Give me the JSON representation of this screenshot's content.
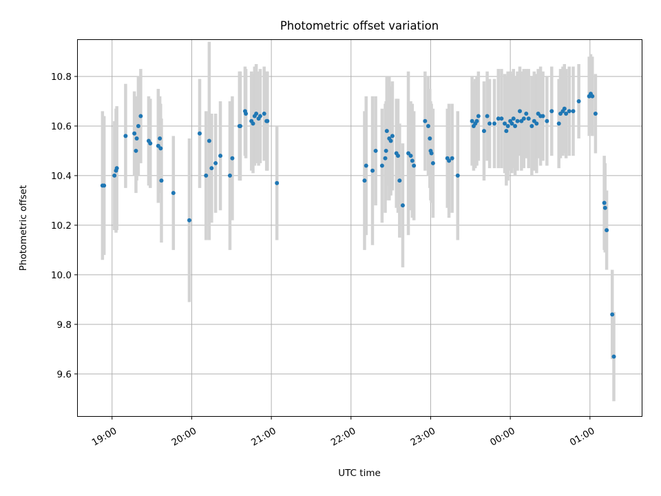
{
  "chart_data": {
    "type": "scatter",
    "title": "Photometric offset variation",
    "xlabel": "UTC time",
    "ylabel": "Photometric offset",
    "x_unit": "hours (UTC, continuous; values >= 24 fall on the next day)",
    "xlim": [
      18.57,
      25.65
    ],
    "ylim": [
      9.43,
      10.95
    ],
    "x_ticks": [
      {
        "value": 19,
        "label": "19:00"
      },
      {
        "value": 20,
        "label": "20:00"
      },
      {
        "value": 21,
        "label": "21:00"
      },
      {
        "value": 22,
        "label": "22:00"
      },
      {
        "value": 23,
        "label": "23:00"
      },
      {
        "value": 24,
        "label": "00:00"
      },
      {
        "value": 25,
        "label": "01:00"
      }
    ],
    "y_ticks": [
      {
        "value": 9.6,
        "label": "9.6"
      },
      {
        "value": 9.8,
        "label": "9.8"
      },
      {
        "value": 10.0,
        "label": "10.0"
      },
      {
        "value": 10.2,
        "label": "10.2"
      },
      {
        "value": 10.4,
        "label": "10.4"
      },
      {
        "value": 10.6,
        "label": "10.6"
      },
      {
        "value": 10.8,
        "label": "10.8"
      }
    ],
    "grid": true,
    "colors": {
      "points": "#1f77b4",
      "errorbars": "#d3d3d3",
      "grid": "#b0b0b0"
    },
    "series": [
      {
        "points": [
          [
            18.88,
            10.36,
            0.3
          ],
          [
            18.9,
            10.36,
            0.28
          ],
          [
            19.03,
            10.4,
            0.22
          ],
          [
            19.05,
            10.42,
            0.25
          ],
          [
            19.06,
            10.43,
            0.25
          ],
          [
            19.17,
            10.56,
            0.21
          ],
          [
            19.28,
            10.57,
            0.17
          ],
          [
            19.3,
            10.5,
            0.17
          ],
          [
            19.31,
            10.55,
            0.17
          ],
          [
            19.33,
            10.6,
            0.2
          ],
          [
            19.36,
            10.64,
            0.19
          ],
          [
            19.46,
            10.54,
            0.18
          ],
          [
            19.48,
            10.53,
            0.18
          ],
          [
            19.58,
            10.52,
            0.23
          ],
          [
            19.6,
            10.55,
            0.17
          ],
          [
            19.61,
            10.51,
            0.18
          ],
          [
            19.62,
            10.38,
            0.25
          ],
          [
            19.77,
            10.33,
            0.23
          ],
          [
            19.97,
            10.22,
            0.33
          ],
          [
            20.1,
            10.57,
            0.22
          ],
          [
            20.18,
            10.4,
            0.26
          ],
          [
            20.22,
            10.54,
            0.4
          ],
          [
            20.25,
            10.43,
            0.22
          ],
          [
            20.3,
            10.45,
            0.2
          ],
          [
            20.36,
            10.48,
            0.22
          ],
          [
            20.48,
            10.4,
            0.3
          ],
          [
            20.51,
            10.47,
            0.25
          ],
          [
            20.6,
            10.6,
            0.22
          ],
          [
            20.61,
            10.6,
            0.22
          ],
          [
            20.67,
            10.66,
            0.18
          ],
          [
            20.68,
            10.65,
            0.18
          ],
          [
            20.75,
            10.62,
            0.2
          ],
          [
            20.77,
            10.61,
            0.2
          ],
          [
            20.79,
            10.64,
            0.2
          ],
          [
            20.81,
            10.65,
            0.2
          ],
          [
            20.84,
            10.63,
            0.19
          ],
          [
            20.86,
            10.64,
            0.19
          ],
          [
            20.91,
            10.65,
            0.19
          ],
          [
            20.94,
            10.62,
            0.2
          ],
          [
            20.95,
            10.62,
            0.2
          ],
          [
            21.07,
            10.37,
            0.23
          ],
          [
            22.17,
            10.38,
            0.28
          ],
          [
            22.19,
            10.44,
            0.28
          ],
          [
            22.27,
            10.42,
            0.3
          ],
          [
            22.31,
            10.5,
            0.22
          ],
          [
            22.39,
            10.44,
            0.23
          ],
          [
            22.43,
            10.47,
            0.22
          ],
          [
            22.44,
            10.5,
            0.2
          ],
          [
            22.45,
            10.58,
            0.22
          ],
          [
            22.48,
            10.55,
            0.25
          ],
          [
            22.5,
            10.54,
            0.22
          ],
          [
            22.52,
            10.56,
            0.22
          ],
          [
            22.57,
            10.49,
            0.22
          ],
          [
            22.59,
            10.48,
            0.23
          ],
          [
            22.61,
            10.38,
            0.23
          ],
          [
            22.65,
            10.28,
            0.25
          ],
          [
            22.72,
            10.49,
            0.33
          ],
          [
            22.75,
            10.48,
            0.22
          ],
          [
            22.77,
            10.46,
            0.23
          ],
          [
            22.79,
            10.44,
            0.22
          ],
          [
            22.93,
            10.62,
            0.2
          ],
          [
            22.97,
            10.6,
            0.2
          ],
          [
            22.99,
            10.55,
            0.2
          ],
          [
            23.0,
            10.5,
            0.2
          ],
          [
            23.01,
            10.49,
            0.2
          ],
          [
            23.03,
            10.45,
            0.22
          ],
          [
            23.21,
            10.47,
            0.2
          ],
          [
            23.23,
            10.46,
            0.23
          ],
          [
            23.27,
            10.47,
            0.22
          ],
          [
            23.34,
            10.4,
            0.26
          ],
          [
            23.52,
            10.62,
            0.18
          ],
          [
            23.54,
            10.6,
            0.18
          ],
          [
            23.56,
            10.61,
            0.18
          ],
          [
            23.58,
            10.62,
            0.18
          ],
          [
            23.6,
            10.64,
            0.18
          ],
          [
            23.67,
            10.58,
            0.2
          ],
          [
            23.71,
            10.64,
            0.18
          ],
          [
            23.74,
            10.61,
            0.18
          ],
          [
            23.8,
            10.61,
            0.18
          ],
          [
            23.85,
            10.63,
            0.2
          ],
          [
            23.89,
            10.63,
            0.2
          ],
          [
            23.93,
            10.61,
            0.2
          ],
          [
            23.95,
            10.58,
            0.22
          ],
          [
            23.97,
            10.6,
            0.22
          ],
          [
            24.0,
            10.62,
            0.2
          ],
          [
            24.02,
            10.61,
            0.2
          ],
          [
            24.04,
            10.63,
            0.2
          ],
          [
            24.06,
            10.6,
            0.2
          ],
          [
            24.09,
            10.62,
            0.2
          ],
          [
            24.12,
            10.66,
            0.18
          ],
          [
            24.14,
            10.62,
            0.2
          ],
          [
            24.17,
            10.63,
            0.2
          ],
          [
            24.2,
            10.65,
            0.18
          ],
          [
            24.23,
            10.63,
            0.2
          ],
          [
            24.27,
            10.6,
            0.2
          ],
          [
            24.3,
            10.62,
            0.2
          ],
          [
            24.33,
            10.61,
            0.2
          ],
          [
            24.35,
            10.65,
            0.18
          ],
          [
            24.38,
            10.64,
            0.2
          ],
          [
            24.41,
            10.64,
            0.18
          ],
          [
            24.46,
            10.62,
            0.18
          ],
          [
            24.52,
            10.66,
            0.18
          ],
          [
            24.61,
            10.61,
            0.18
          ],
          [
            24.63,
            10.65,
            0.18
          ],
          [
            24.66,
            10.66,
            0.18
          ],
          [
            24.68,
            10.67,
            0.18
          ],
          [
            24.7,
            10.65,
            0.18
          ],
          [
            24.74,
            10.66,
            0.18
          ],
          [
            24.79,
            10.66,
            0.18
          ],
          [
            24.86,
            10.7,
            0.15
          ],
          [
            24.99,
            10.72,
            0.16
          ],
          [
            25.01,
            10.73,
            0.16
          ],
          [
            25.03,
            10.72,
            0.16
          ],
          [
            25.07,
            10.65,
            0.16
          ],
          [
            25.18,
            10.29,
            0.19
          ],
          [
            25.19,
            10.27,
            0.18
          ],
          [
            25.21,
            10.18,
            0.16
          ],
          [
            25.28,
            9.84,
            0.18
          ],
          [
            25.3,
            9.67,
            0.18
          ]
        ]
      }
    ]
  }
}
